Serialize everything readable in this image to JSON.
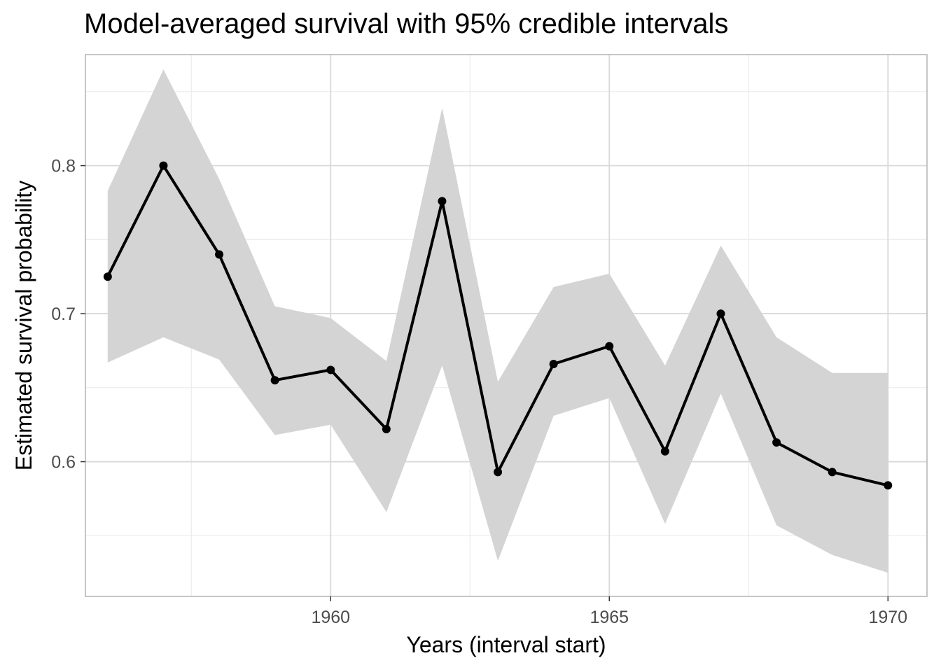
{
  "chart_data": {
    "type": "line",
    "title": "Model-averaged survival with 95% credible intervals",
    "xlabel": "Years (interval start)",
    "ylabel": "Estimated survival probability",
    "xlim": [
      1955.6,
      1970.7
    ],
    "ylim": [
      0.509,
      0.875
    ],
    "x_ticks": [
      1960,
      1965,
      1970
    ],
    "y_ticks": [
      0.6,
      0.7,
      0.8
    ],
    "x_tick_labels": [
      "1960",
      "1965",
      "1970"
    ],
    "y_tick_labels": [
      "0.6",
      "0.7",
      "0.8"
    ],
    "grid": true,
    "legend": "none",
    "line_color": "#000000",
    "band_color": "#d4d4d4",
    "x": [
      1956,
      1957,
      1958,
      1959,
      1960,
      1961,
      1962,
      1963,
      1964,
      1965,
      1966,
      1967,
      1968,
      1969,
      1970
    ],
    "series": [
      {
        "values": [
          0.725,
          0.8,
          0.74,
          0.655,
          0.662,
          0.622,
          0.776,
          0.593,
          0.666,
          0.678,
          0.607,
          0.7,
          0.613,
          0.593,
          0.584
        ],
        "lower": [
          0.667,
          0.684,
          0.669,
          0.618,
          0.625,
          0.566,
          0.665,
          0.533,
          0.631,
          0.643,
          0.558,
          0.646,
          0.557,
          0.537,
          0.525
        ],
        "upper": [
          0.783,
          0.865,
          0.791,
          0.705,
          0.697,
          0.668,
          0.839,
          0.654,
          0.718,
          0.727,
          0.665,
          0.746,
          0.684,
          0.66,
          0.66
        ]
      }
    ]
  }
}
